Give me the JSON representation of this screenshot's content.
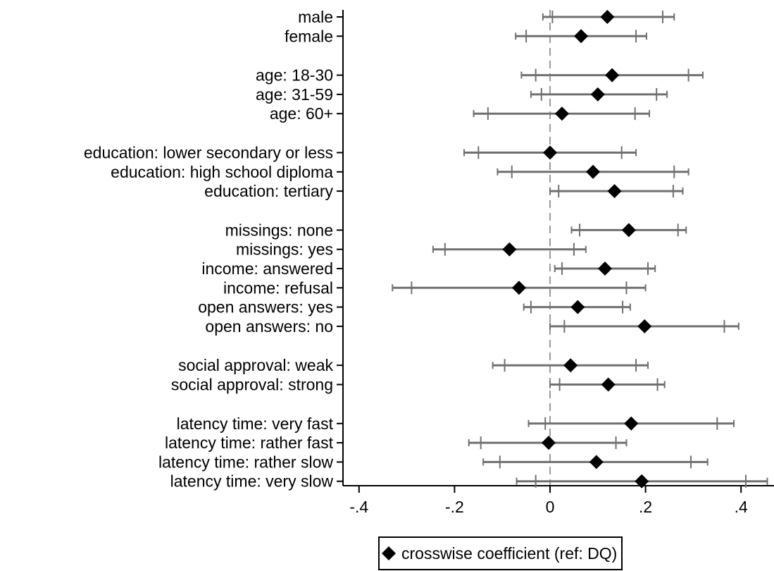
{
  "chart_data": {
    "type": "scatter",
    "subtype": "coefficient-plot-horizontal",
    "title": "",
    "xlabel": "",
    "ylabel": "",
    "xlim": [
      -0.5,
      0.46
    ],
    "x_ticks": [
      -0.4,
      -0.2,
      0,
      0.2,
      0.4
    ],
    "x_tick_labels": [
      "-.4",
      "-.2",
      "0",
      ".2",
      ".4"
    ],
    "reference_line": {
      "x": 0,
      "style": "dashed"
    },
    "legend": {
      "position": "bottom",
      "entries": [
        "crosswise coefficient (ref: DQ)"
      ]
    },
    "marker": "diamond",
    "categories": [
      {
        "label": "male",
        "group": 1,
        "estimate": 0.12,
        "ci90": [
          0.005,
          0.236
        ],
        "ci95": [
          -0.015,
          0.26
        ]
      },
      {
        "label": "female",
        "group": 1,
        "estimate": 0.065,
        "ci90": [
          -0.05,
          0.18
        ],
        "ci95": [
          -0.072,
          0.202
        ]
      },
      {
        "label": "age: 18-30",
        "group": 2,
        "estimate": 0.13,
        "ci90": [
          -0.03,
          0.29
        ],
        "ci95": [
          -0.06,
          0.32
        ]
      },
      {
        "label": "age: 31-59",
        "group": 2,
        "estimate": 0.1,
        "ci90": [
          -0.018,
          0.223
        ],
        "ci95": [
          -0.04,
          0.245
        ]
      },
      {
        "label": "age: 60+",
        "group": 2,
        "estimate": 0.025,
        "ci90": [
          -0.13,
          0.178
        ],
        "ci95": [
          -0.16,
          0.208
        ]
      },
      {
        "label": "education: lower secondary or less",
        "group": 3,
        "estimate": 0.0,
        "ci90": [
          -0.15,
          0.15
        ],
        "ci95": [
          -0.18,
          0.18
        ]
      },
      {
        "label": "education: high school diploma",
        "group": 3,
        "estimate": 0.09,
        "ci90": [
          -0.08,
          0.26
        ],
        "ci95": [
          -0.11,
          0.29
        ]
      },
      {
        "label": "education: tertiary",
        "group": 3,
        "estimate": 0.135,
        "ci90": [
          0.018,
          0.258
        ],
        "ci95": [
          0.0,
          0.278
        ]
      },
      {
        "label": "missings: none",
        "group": 4,
        "estimate": 0.165,
        "ci90": [
          0.062,
          0.268
        ],
        "ci95": [
          0.045,
          0.285
        ]
      },
      {
        "label": "missings: yes",
        "group": 4,
        "estimate": -0.085,
        "ci90": [
          -0.22,
          0.05
        ],
        "ci95": [
          -0.245,
          0.075
        ]
      },
      {
        "label": "income: answered",
        "group": 4,
        "estimate": 0.115,
        "ci90": [
          0.025,
          0.205
        ],
        "ci95": [
          0.01,
          0.22
        ]
      },
      {
        "label": "income: refusal",
        "group": 4,
        "estimate": -0.065,
        "ci90": [
          -0.29,
          0.16
        ],
        "ci95": [
          -0.33,
          0.2
        ]
      },
      {
        "label": "open answers: yes",
        "group": 4,
        "estimate": 0.058,
        "ci90": [
          -0.04,
          0.152
        ],
        "ci95": [
          -0.055,
          0.168
        ]
      },
      {
        "label": "open answers: no",
        "group": 4,
        "estimate": 0.198,
        "ci90": [
          0.03,
          0.365
        ],
        "ci95": [
          0.0,
          0.395
        ]
      },
      {
        "label": "social approval: weak",
        "group": 5,
        "estimate": 0.043,
        "ci90": [
          -0.095,
          0.18
        ],
        "ci95": [
          -0.12,
          0.205
        ]
      },
      {
        "label": "social approval: strong",
        "group": 5,
        "estimate": 0.122,
        "ci90": [
          0.02,
          0.225
        ],
        "ci95": [
          0.0,
          0.24
        ]
      },
      {
        "label": "latency time: very fast",
        "group": 6,
        "estimate": 0.17,
        "ci90": [
          -0.01,
          0.35
        ],
        "ci95": [
          -0.045,
          0.385
        ]
      },
      {
        "label": "latency time: rather fast",
        "group": 6,
        "estimate": -0.003,
        "ci90": [
          -0.145,
          0.138
        ],
        "ci95": [
          -0.17,
          0.16
        ]
      },
      {
        "label": "latency time: rather slow",
        "group": 6,
        "estimate": 0.097,
        "ci90": [
          -0.105,
          0.295
        ],
        "ci95": [
          -0.14,
          0.33
        ]
      },
      {
        "label": "latency time: very slow",
        "group": 6,
        "estimate": 0.192,
        "ci90": [
          -0.03,
          0.41
        ],
        "ci95": [
          -0.07,
          0.455
        ]
      }
    ]
  }
}
